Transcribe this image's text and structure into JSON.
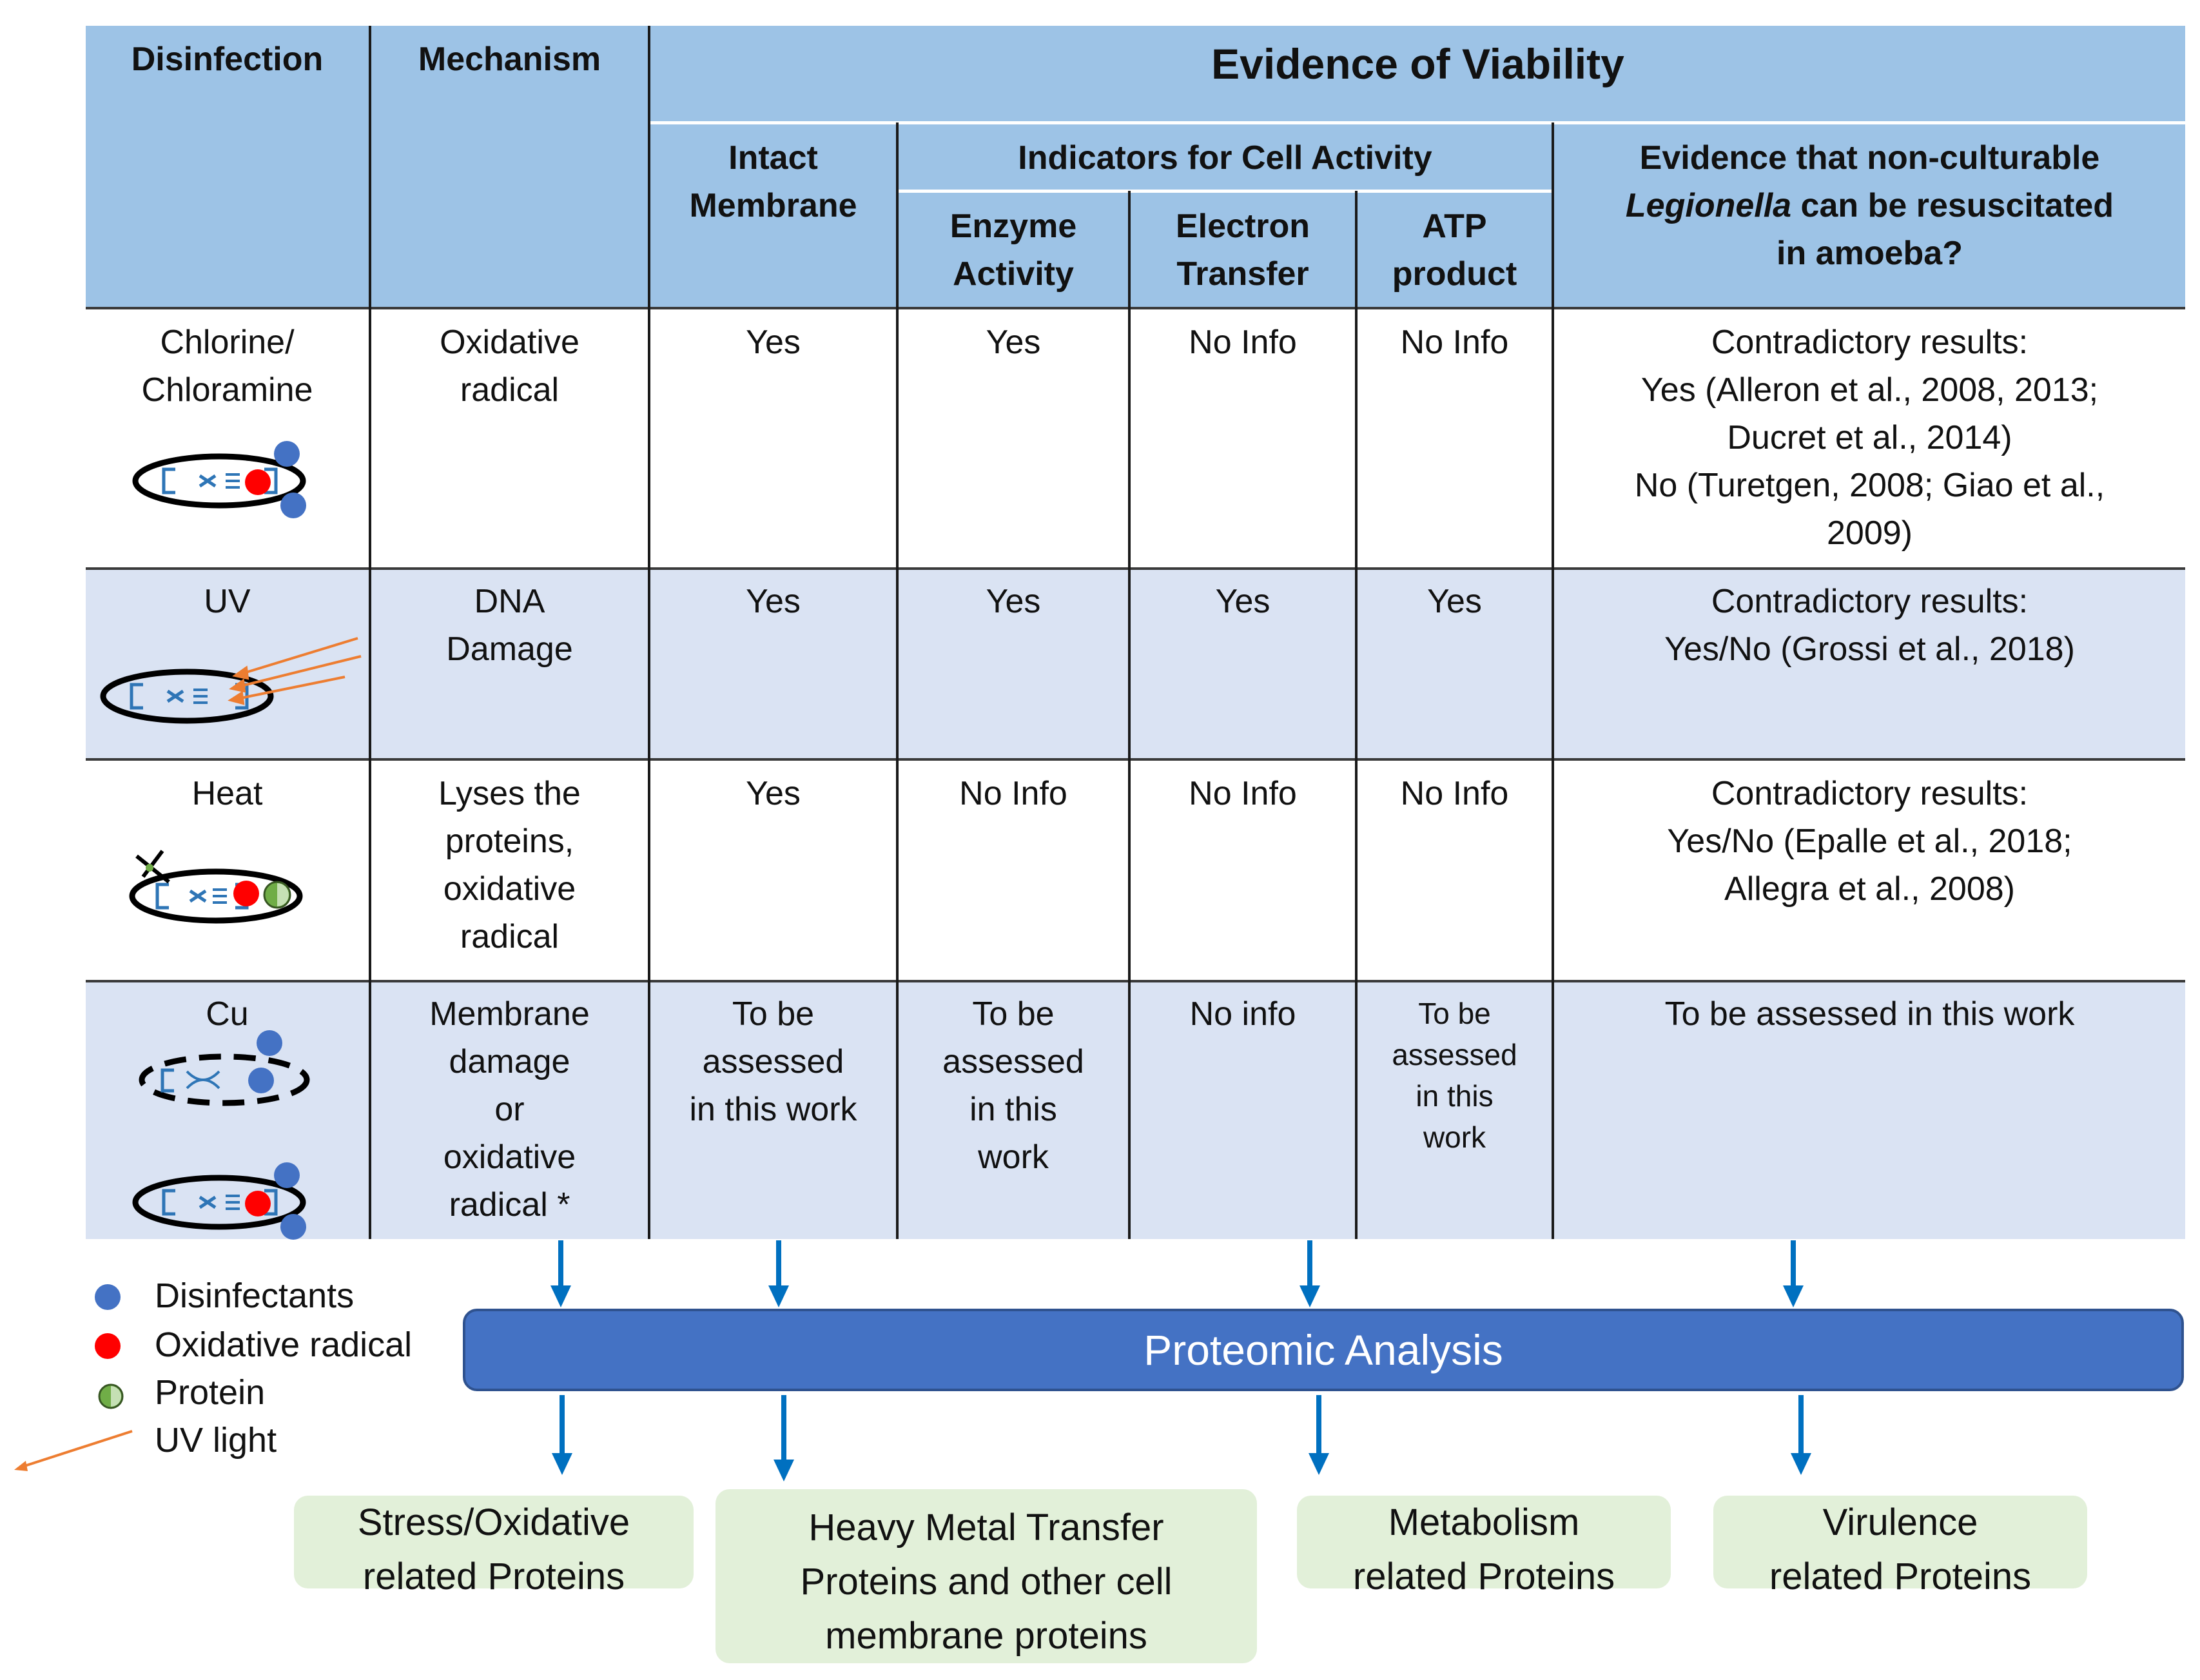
{
  "headers": {
    "disinfection": "Disinfection",
    "mechanism": "Mechanism",
    "evidence": "Evidence of Viability",
    "intact_membrane": [
      "Intact",
      "Membrane"
    ],
    "indicators": "Indicators for Cell Activity",
    "enzyme": [
      "Enzyme",
      "Activity"
    ],
    "electron": [
      "Electron",
      "Transfer"
    ],
    "atp": [
      "ATP",
      "product"
    ],
    "resusc": {
      "line1": "Evidence that non-culturable",
      "italic": "Legionella",
      "line2_rest": " can be resuscitated",
      "line3": "in amoeba?"
    }
  },
  "rows": [
    {
      "disinfection": [
        "Chlorine/",
        "Chloramine"
      ],
      "mechanism": [
        "Oxidative",
        "radical"
      ],
      "intact": [
        "Yes"
      ],
      "enzyme": [
        "Yes"
      ],
      "electron": [
        "No Info"
      ],
      "atp": [
        "No Info"
      ],
      "evidence": [
        "Contradictory results:",
        "Yes (Alleron et al., 2008, 2013;",
        "Ducret et al., 2014)",
        "No (Turetgen, 2008; Giao et al.,",
        "2009)"
      ]
    },
    {
      "disinfection": [
        "UV"
      ],
      "mechanism": [
        "DNA",
        "Damage"
      ],
      "intact": [
        "Yes"
      ],
      "enzyme": [
        "Yes"
      ],
      "electron": [
        "Yes"
      ],
      "atp": [
        "Yes"
      ],
      "evidence": [
        "Contradictory results:",
        "Yes/No (Grossi et al., 2018)"
      ]
    },
    {
      "disinfection": [
        "Heat"
      ],
      "mechanism": [
        "Lyses the",
        "proteins,",
        "oxidative",
        "radical"
      ],
      "intact": [
        "Yes"
      ],
      "enzyme": [
        "No Info"
      ],
      "electron": [
        "No Info"
      ],
      "atp": [
        "No Info"
      ],
      "evidence": [
        "Contradictory results:",
        "Yes/No (Epalle et al., 2018;",
        "Allegra et al., 2008)"
      ]
    },
    {
      "disinfection": [
        "Cu"
      ],
      "mechanism": [
        "Membrane",
        "damage",
        "or",
        "oxidative",
        "radical *"
      ],
      "intact": [
        "To be",
        "assessed",
        "in this work"
      ],
      "enzyme": [
        "To be",
        "assessed",
        "in this",
        "work"
      ],
      "electron": [
        "No info"
      ],
      "atp": [
        "To be",
        "assessed",
        "in this",
        "work"
      ],
      "evidence": [
        "To be assessed in this work"
      ]
    }
  ],
  "legend": {
    "disinfectants": "Disinfectants",
    "oxidative": "Oxidative radical",
    "protein": "Protein",
    "uv": "UV light"
  },
  "proteomic": "Proteomic Analysis",
  "outputs": {
    "stress": [
      "Stress/Oxidative",
      "related Proteins"
    ],
    "heavy": [
      "Heavy Metal Transfer",
      "Proteins and other cell",
      "membrane proteins"
    ],
    "metabolism": [
      "Metabolism",
      "related Proteins"
    ],
    "virulence": [
      "Virulence",
      "related Proteins"
    ]
  },
  "colors": {
    "header_bg": "#9dc3e6",
    "row_alt_bg": "#dae3f3",
    "proteomic_bg": "#4472c4",
    "output_bg": "#e2f0d9",
    "arrow": "#0070c0",
    "disinfectant": "#4472c4",
    "oxidative": "#ff0000",
    "protein": "#70ad47",
    "uv": "#ed7d31"
  },
  "icons": {
    "chlorine": "bacterium-with-disinfectant-icon",
    "uv": "bacterium-uv-icon",
    "heat": "bacterium-heat-icon",
    "cu": "bacterium-copper-icon"
  }
}
